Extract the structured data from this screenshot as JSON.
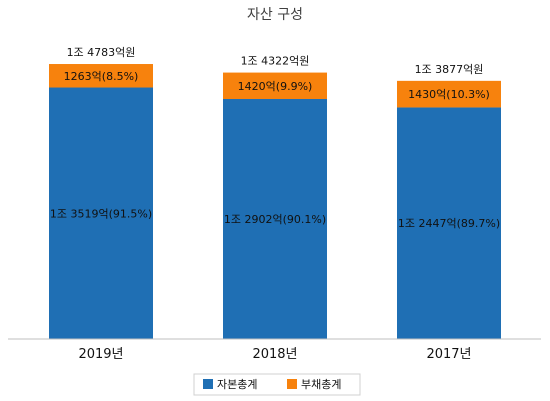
{
  "chart_data": {
    "type": "bar",
    "stacked": true,
    "title": "자산 구성",
    "categories": [
      "2019년",
      "2018년",
      "2017년"
    ],
    "series": [
      {
        "name": "자본총계",
        "color": "#1f6fb4",
        "values": [
          13519,
          12902,
          12447
        ],
        "labels": [
          "1조 3519억(91.5%)",
          "1조 2902억(90.1%)",
          "1조 2447억(89.7%)"
        ]
      },
      {
        "name": "부채총계",
        "color": "#f7820d",
        "values": [
          1263,
          1420,
          1430
        ],
        "labels": [
          "1263억(8.5%)",
          "1420억(9.9%)",
          "1430억(10.3%)"
        ]
      }
    ],
    "totals": [
      14783,
      14322,
      13877
    ],
    "total_labels": [
      "1조 4783억원",
      "1조 4322억원",
      "1조 3877억원"
    ],
    "unit": "억원",
    "legend_position": "bottom",
    "grid": false
  }
}
